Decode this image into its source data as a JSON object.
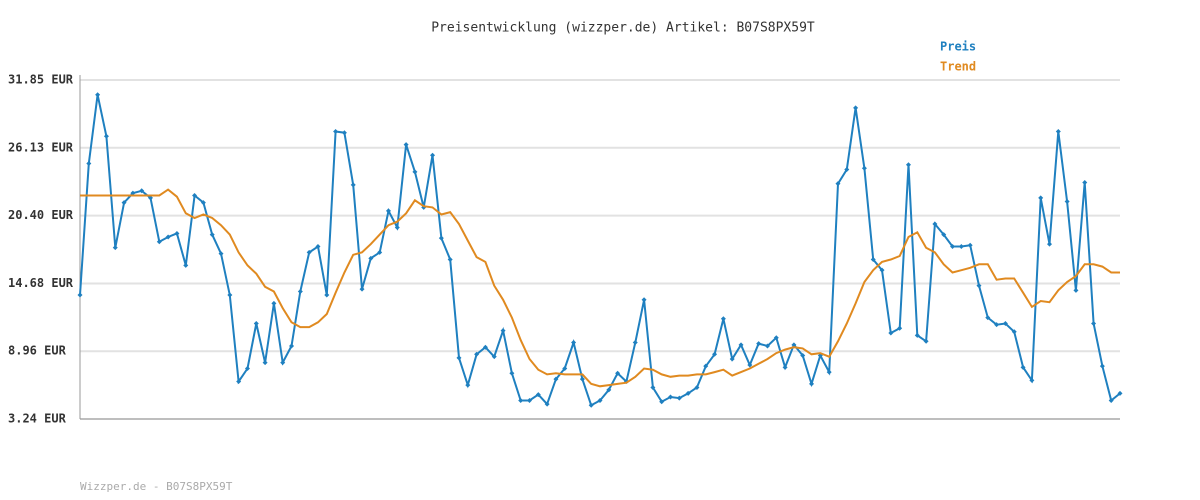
{
  "chart_data": {
    "type": "line",
    "title": "Preisentwicklung (wizzper.de) Artikel: B07S8PX59T",
    "footer": "Wizzper.de - B07S8PX59T",
    "ylim": [
      3.24,
      31.85
    ],
    "yticks": [
      {
        "value": 3.24,
        "label": "3.24 EUR"
      },
      {
        "value": 8.96,
        "label": "8.96 EUR"
      },
      {
        "value": 14.68,
        "label": "14.68 EUR"
      },
      {
        "value": 20.4,
        "label": "20.40 EUR"
      },
      {
        "value": 26.13,
        "label": "26.13 EUR"
      },
      {
        "value": 31.85,
        "label": "31.85 EUR"
      }
    ],
    "grid": true,
    "legend": "top-right",
    "series": [
      {
        "name": "Preis",
        "color": "#1f80c0",
        "markers": true,
        "values": [
          13.7,
          24.8,
          30.6,
          27.1,
          17.7,
          21.5,
          22.3,
          22.5,
          21.9,
          18.2,
          18.6,
          18.9,
          16.2,
          22.1,
          21.5,
          18.8,
          17.2,
          13.7,
          6.4,
          7.5,
          11.3,
          8.0,
          13.0,
          8.0,
          9.4,
          14.0,
          17.3,
          17.8,
          13.7,
          27.5,
          27.4,
          23.0,
          14.2,
          16.8,
          17.3,
          20.8,
          19.4,
          26.4,
          24.1,
          21.1,
          25.5,
          18.5,
          16.7,
          8.4,
          6.1,
          8.7,
          9.3,
          8.5,
          10.7,
          7.1,
          4.8,
          4.8,
          5.3,
          4.5,
          6.6,
          7.5,
          9.7,
          6.6,
          4.4,
          4.8,
          5.7,
          7.1,
          6.4,
          9.7,
          13.3,
          5.9,
          4.7,
          5.1,
          5.0,
          5.4,
          5.9,
          7.7,
          8.7,
          11.7,
          8.3,
          9.5,
          7.8,
          9.6,
          9.4,
          10.1,
          7.6,
          9.5,
          8.6,
          6.2,
          8.6,
          7.2,
          23.1,
          24.3,
          29.5,
          24.4,
          16.7,
          15.8,
          10.5,
          10.9,
          24.7,
          10.3,
          9.8,
          19.7,
          18.8,
          17.8,
          17.8,
          17.9,
          14.5,
          11.8,
          11.2,
          11.3,
          10.6,
          7.6,
          6.5,
          21.9,
          18.0,
          27.5,
          21.6,
          14.1,
          23.2,
          11.3,
          7.7,
          4.8,
          5.4
        ]
      },
      {
        "name": "Trend",
        "color": "#e08a20",
        "markers": false,
        "values": [
          22.1,
          22.1,
          22.1,
          22.1,
          22.1,
          22.1,
          22.1,
          22.1,
          22.1,
          22.1,
          22.6,
          22.0,
          20.6,
          20.2,
          20.5,
          20.2,
          19.6,
          18.8,
          17.3,
          16.2,
          15.5,
          14.4,
          14.0,
          12.6,
          11.4,
          11.0,
          11.0,
          11.4,
          12.1,
          13.9,
          15.6,
          17.1,
          17.3,
          18.0,
          18.8,
          19.6,
          19.9,
          20.6,
          21.7,
          21.2,
          21.1,
          20.5,
          20.7,
          19.7,
          18.3,
          16.9,
          16.5,
          14.5,
          13.3,
          11.8,
          9.9,
          8.3,
          7.4,
          7.0,
          7.1,
          7.0,
          7.0,
          7.0,
          6.2,
          6.0,
          6.1,
          6.2,
          6.3,
          6.8,
          7.5,
          7.4,
          7.0,
          6.8,
          6.9,
          6.9,
          7.0,
          7.0,
          7.2,
          7.4,
          6.9,
          7.2,
          7.5,
          7.9,
          8.3,
          8.8,
          9.1,
          9.3,
          9.2,
          8.7,
          8.8,
          8.5,
          9.8,
          11.3,
          13.0,
          14.8,
          15.8,
          16.5,
          16.7,
          17.0,
          18.6,
          19.0,
          17.7,
          17.3,
          16.3,
          15.6,
          15.8,
          16.0,
          16.3,
          16.3,
          15.0,
          15.1,
          15.1,
          13.9,
          12.7,
          13.2,
          13.1,
          14.1,
          14.8,
          15.3,
          16.3,
          16.3,
          16.1,
          15.6,
          15.6
        ]
      }
    ]
  }
}
